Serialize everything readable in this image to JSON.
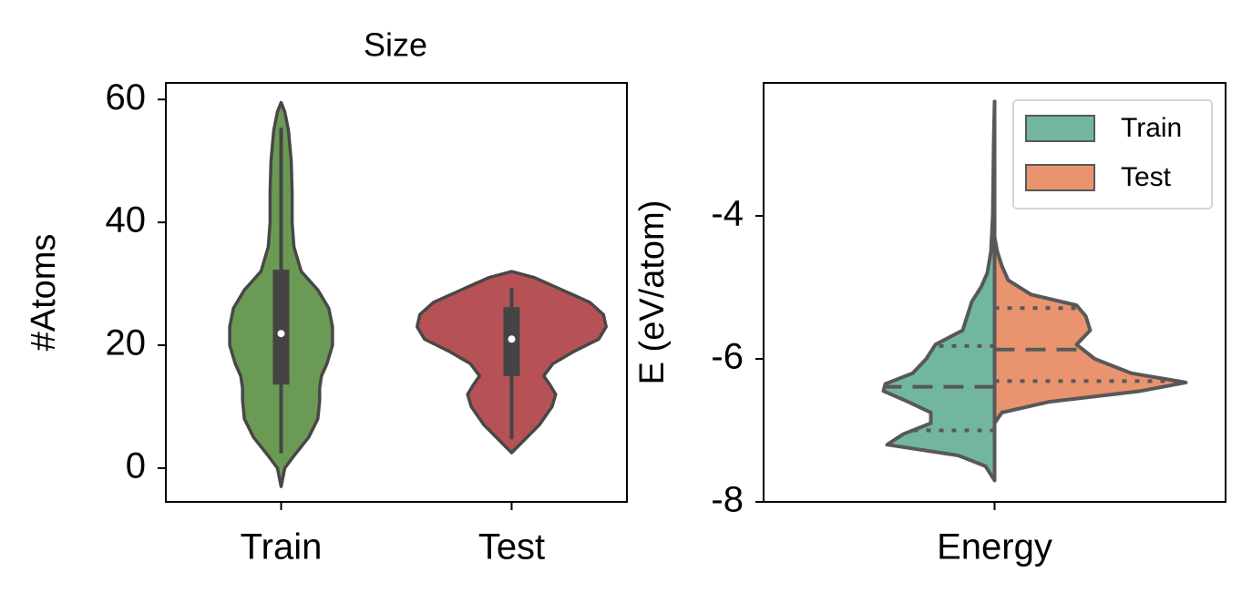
{
  "chart_data": [
    {
      "type": "violin",
      "title": "Size",
      "ylabel": "#Atoms",
      "categories": [
        "Train",
        "Test"
      ],
      "ylim": [
        -5.5,
        62.7
      ],
      "yticks": [
        0,
        20,
        40,
        60
      ],
      "violins": [
        {
          "color": "#6b9a55",
          "y": [
            -3,
            0,
            2,
            5,
            8,
            11,
            13,
            15,
            17,
            20,
            23,
            26,
            29,
            32,
            36,
            40,
            45,
            50,
            55,
            58,
            59.5
          ],
          "density": [
            0,
            0.04,
            0.14,
            0.3,
            0.4,
            0.42,
            0.42,
            0.44,
            0.5,
            0.56,
            0.56,
            0.52,
            0.4,
            0.22,
            0.14,
            0.12,
            0.12,
            0.11,
            0.08,
            0.04,
            0
          ],
          "whislo": 2.4,
          "q1": 13.6,
          "median": 21.9,
          "q3": 32.3,
          "whishi": 55.4
        },
        {
          "color": "#b65256",
          "y": [
            2.5,
            4,
            7,
            10,
            12,
            13.5,
            15,
            17,
            19,
            21,
            23,
            25,
            27,
            29,
            31,
            32
          ],
          "density": [
            0,
            0.1,
            0.3,
            0.44,
            0.48,
            0.42,
            0.35,
            0.45,
            0.68,
            0.95,
            1.03,
            1.0,
            0.85,
            0.55,
            0.25,
            0
          ],
          "whislo": 4.7,
          "q1": 15,
          "median": 21,
          "q3": 26.2,
          "whishi": 29.3
        }
      ]
    },
    {
      "type": "split_violin",
      "ylabel": "E (eV/atom)",
      "categories": [
        "Energy"
      ],
      "ylim": [
        -8,
        -2.14
      ],
      "yticks": [
        -8,
        -6,
        -4
      ],
      "legend": "upper right",
      "series": [
        {
          "name": "Train",
          "color": "#72b6a1",
          "side": "left",
          "y": [
            -7.7,
            -7.5,
            -7.35,
            -7.2,
            -7.05,
            -6.9,
            -6.75,
            -6.6,
            -6.45,
            -6.35,
            -6.2,
            -6.0,
            -5.8,
            -5.6,
            -5.4,
            -5.2,
            -5.0,
            -4.8,
            -4.5,
            -4.0,
            -3.0,
            -2.4
          ],
          "density": [
            0,
            0.1,
            0.4,
            1.18,
            1.0,
            0.7,
            0.7,
            0.95,
            1.22,
            1.2,
            0.9,
            0.75,
            0.65,
            0.35,
            0.3,
            0.25,
            0.15,
            0.08,
            0.04,
            0.02,
            0.01,
            0
          ],
          "q1": -7.0,
          "median": -6.39,
          "q3": -5.82
        },
        {
          "name": "Test",
          "color": "#e9946f",
          "side": "right",
          "y": [
            -6.9,
            -6.75,
            -6.6,
            -6.45,
            -6.33,
            -6.2,
            -6.0,
            -5.8,
            -5.6,
            -5.4,
            -5.25,
            -5.1,
            -4.9,
            -4.7,
            -4.5,
            -4.3
          ],
          "density": [
            0,
            0.08,
            0.6,
            1.6,
            2.1,
            1.5,
            1.1,
            0.9,
            1.05,
            1.0,
            0.9,
            0.4,
            0.15,
            0.08,
            0.03,
            0
          ],
          "q1": -6.31,
          "median": -5.87,
          "q3": -5.29
        }
      ]
    }
  ]
}
